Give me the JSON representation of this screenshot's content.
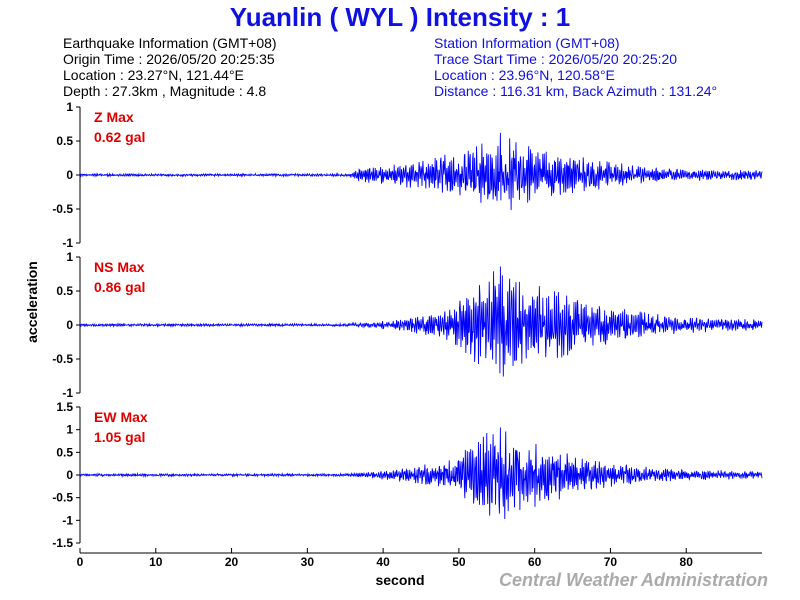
{
  "header": {
    "title": "Yuanlin ( WYL ) Intensity : 1",
    "title_color": "#1010e0"
  },
  "earthquake_info": {
    "heading": "Earthquake Information (GMT+08)",
    "origin_time": "Origin Time : 2026/05/20 20:25:35",
    "location": "Location : 23.27°N, 121.44°E",
    "depth_magnitude": "Depth : 27.3km , Magnitude : 4.8"
  },
  "station_info": {
    "heading": "Station Information (GMT+08)",
    "trace_start": "Trace Start Time : 2026/05/20 20:25:20",
    "location": "Location : 23.96°N, 120.58°E",
    "distance_azimuth": "Distance : 116.31 km, Back Azimuth : 131.24°"
  },
  "footer": {
    "credit": "Central Weather Administration",
    "credit_color": "#aaaaaa"
  },
  "colors": {
    "trace": "#0000ff",
    "label": "#e00000",
    "station_text": "#1010e0"
  },
  "chart_data": {
    "type": "line",
    "xlabel": "second",
    "ylabel": "acceleration",
    "xlim": [
      0,
      90
    ],
    "xticks": [
      0,
      10,
      20,
      30,
      40,
      50,
      60,
      70,
      80
    ],
    "grid": false,
    "panels": [
      {
        "name": "Z",
        "label": "Z Max",
        "max_text": "0.62 gal",
        "ylim": [
          -1,
          1
        ],
        "yticks": [
          1,
          0.5,
          0,
          -0.5,
          -1
        ],
        "max_value": 0.62,
        "envelope_times": [
          0,
          35.5,
          36,
          40,
          45,
          50,
          53,
          55,
          60,
          65,
          70,
          75,
          80,
          90
        ],
        "envelope_values": [
          0.02,
          0.02,
          0.08,
          0.15,
          0.22,
          0.35,
          0.5,
          0.62,
          0.4,
          0.3,
          0.2,
          0.12,
          0.09,
          0.07
        ]
      },
      {
        "name": "NS",
        "label": "NS Max",
        "max_text": "0.86 gal",
        "ylim": [
          -1,
          1
        ],
        "yticks": [
          1,
          0.5,
          0,
          -0.5,
          -1
        ],
        "max_value": 0.86,
        "envelope_times": [
          0,
          35.5,
          36,
          40,
          45,
          50,
          53,
          55,
          60,
          65,
          70,
          75,
          80,
          90
        ],
        "envelope_values": [
          0.02,
          0.02,
          0.03,
          0.06,
          0.14,
          0.35,
          0.75,
          0.86,
          0.6,
          0.48,
          0.3,
          0.18,
          0.12,
          0.08
        ]
      },
      {
        "name": "EW",
        "label": "EW Max",
        "max_text": "1.05 gal",
        "ylim": [
          -1.5,
          1.5
        ],
        "yticks": [
          1.5,
          1,
          0.5,
          0,
          -0.5,
          -1,
          -1.5
        ],
        "max_value": 1.05,
        "envelope_times": [
          0,
          35.5,
          36,
          40,
          45,
          50,
          53,
          55,
          60,
          65,
          70,
          75,
          80,
          90
        ],
        "envelope_values": [
          0.03,
          0.03,
          0.04,
          0.1,
          0.22,
          0.45,
          0.95,
          1.05,
          0.8,
          0.45,
          0.3,
          0.18,
          0.12,
          0.09
        ]
      }
    ]
  }
}
